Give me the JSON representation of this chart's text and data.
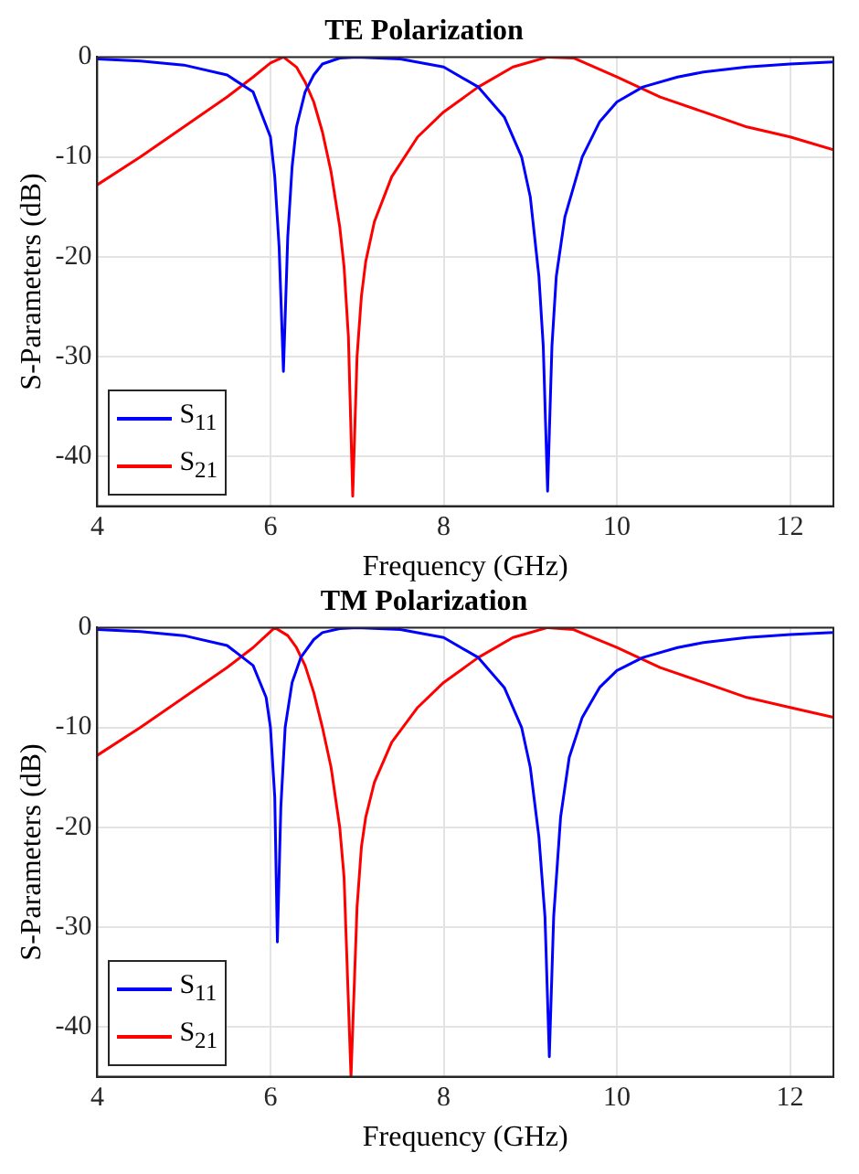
{
  "chart_data": [
    {
      "type": "line",
      "title": "TE Polarization",
      "xlabel": "Frequency (GHz)",
      "ylabel": "S-Parameters (dB)",
      "xlim": [
        4,
        12.5
      ],
      "ylim": [
        -45,
        0
      ],
      "xticks": [
        4,
        6,
        8,
        10,
        12
      ],
      "yticks": [
        -40,
        -30,
        -20,
        -10,
        0
      ],
      "grid": true,
      "legend": "bottom left",
      "marker": "none",
      "line_style": "solid",
      "series": [
        {
          "name": "S$_{11}$",
          "color": "#0000ff",
          "x": [
            4,
            4.5,
            5,
            5.5,
            5.8,
            6.0,
            6.05,
            6.1,
            6.15,
            6.2,
            6.25,
            6.3,
            6.4,
            6.5,
            6.6,
            6.8,
            7.0,
            7.5,
            8,
            8.4,
            8.7,
            8.9,
            9.0,
            9.1,
            9.15,
            9.2,
            9.25,
            9.3,
            9.4,
            9.6,
            9.8,
            10,
            10.3,
            10.7,
            11,
            11.5,
            12,
            12.5
          ],
          "values": [
            -0.2,
            -0.4,
            -0.8,
            -1.8,
            -3.5,
            -8,
            -12,
            -19,
            -31.5,
            -18,
            -11,
            -7,
            -3.5,
            -1.8,
            -0.7,
            -0.1,
            0,
            -0.2,
            -1,
            -3,
            -6,
            -10,
            -14,
            -22,
            -29,
            -43.5,
            -29,
            -22,
            -16,
            -10,
            -6.5,
            -4.5,
            -3,
            -2,
            -1.5,
            -1,
            -0.7,
            -0.5
          ]
        },
        {
          "name": "S$_{21}$",
          "color": "#ff0000",
          "x": [
            4,
            4.5,
            5,
            5.5,
            5.8,
            6.0,
            6.15,
            6.3,
            6.4,
            6.5,
            6.6,
            6.7,
            6.8,
            6.85,
            6.9,
            6.95,
            7.0,
            7.05,
            7.1,
            7.2,
            7.4,
            7.7,
            8,
            8.4,
            8.8,
            9.2,
            9.5,
            10,
            10.5,
            11,
            11.5,
            12,
            12.5
          ],
          "values": [
            -12.8,
            -10,
            -7,
            -4,
            -2,
            -0.6,
            0,
            -1,
            -2.5,
            -4.5,
            -7.5,
            -11.5,
            -17,
            -21,
            -28,
            -44,
            -30,
            -24,
            -20.5,
            -16.5,
            -12,
            -8,
            -5.5,
            -3,
            -1,
            0,
            -0.1,
            -2,
            -4,
            -5.5,
            -7,
            -8,
            -9.3
          ]
        }
      ]
    },
    {
      "type": "line",
      "title": "TM Polarization",
      "xlabel": "Frequency (GHz)",
      "ylabel": "S-Parameters (dB)",
      "xlim": [
        4,
        12.5
      ],
      "ylim": [
        -45,
        0
      ],
      "xticks": [
        4,
        6,
        8,
        10,
        12
      ],
      "yticks": [
        -40,
        -30,
        -20,
        -10,
        0
      ],
      "grid": true,
      "legend": "bottom left",
      "marker": "none",
      "line_style": "solid",
      "series": [
        {
          "name": "S$_{11}$",
          "color": "#0000ff",
          "x": [
            4,
            4.5,
            5,
            5.5,
            5.8,
            5.95,
            6.0,
            6.05,
            6.08,
            6.12,
            6.17,
            6.25,
            6.35,
            6.5,
            6.6,
            6.8,
            7.0,
            7.5,
            8,
            8.4,
            8.7,
            8.9,
            9.0,
            9.1,
            9.17,
            9.22,
            9.27,
            9.35,
            9.45,
            9.6,
            9.8,
            10,
            10.3,
            10.7,
            11,
            11.5,
            12,
            12.5
          ],
          "values": [
            -0.2,
            -0.4,
            -0.8,
            -1.8,
            -3.8,
            -7,
            -10,
            -17,
            -31.5,
            -18,
            -10,
            -5.5,
            -3,
            -1.2,
            -0.5,
            -0.1,
            0,
            -0.2,
            -1,
            -3,
            -6,
            -10,
            -14,
            -21,
            -29,
            -43,
            -29,
            -19,
            -13,
            -9,
            -6,
            -4.3,
            -3,
            -2,
            -1.5,
            -1,
            -0.7,
            -0.5
          ]
        },
        {
          "name": "S$_{21}$",
          "color": "#ff0000",
          "x": [
            4,
            4.5,
            5,
            5.5,
            5.8,
            5.95,
            6.05,
            6.2,
            6.3,
            6.4,
            6.5,
            6.6,
            6.7,
            6.8,
            6.85,
            6.93,
            7.0,
            7.05,
            7.1,
            7.2,
            7.4,
            7.7,
            8,
            8.4,
            8.8,
            9.2,
            9.5,
            10,
            10.5,
            11,
            11.5,
            12,
            12.5
          ],
          "values": [
            -12.8,
            -10,
            -7,
            -4,
            -2,
            -0.8,
            0,
            -0.8,
            -2,
            -3.8,
            -6.5,
            -10,
            -14,
            -20,
            -25,
            -45,
            -28,
            -22,
            -19,
            -15.5,
            -11.5,
            -8,
            -5.5,
            -3,
            -1,
            0,
            -0.2,
            -2,
            -4,
            -5.5,
            -7,
            -8,
            -9
          ]
        }
      ]
    }
  ]
}
